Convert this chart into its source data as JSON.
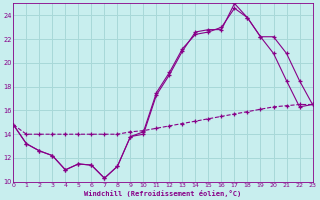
{
  "xlabel": "Windchill (Refroidissement éolien,°C)",
  "xlim": [
    0,
    23
  ],
  "ylim": [
    10,
    25
  ],
  "yticks": [
    10,
    12,
    14,
    16,
    18,
    20,
    22,
    24
  ],
  "xticks": [
    0,
    1,
    2,
    3,
    4,
    5,
    6,
    7,
    8,
    9,
    10,
    11,
    12,
    13,
    14,
    15,
    16,
    17,
    18,
    19,
    20,
    21,
    22,
    23
  ],
  "bg_color": "#c8eeee",
  "grid_color": "#a8d8d8",
  "line_color": "#880088",
  "line1_y": [
    14.8,
    13.2,
    12.6,
    12.2,
    11.0,
    11.5,
    11.4,
    10.3,
    11.3,
    13.8,
    14.0,
    17.3,
    19.0,
    21.0,
    22.6,
    22.8,
    22.8,
    25.0,
    23.8,
    22.2,
    20.8,
    18.5,
    16.3,
    16.5
  ],
  "line2_y": [
    14.8,
    13.2,
    12.6,
    12.2,
    11.0,
    11.5,
    11.4,
    10.3,
    11.3,
    13.8,
    14.2,
    17.5,
    19.2,
    21.2,
    22.4,
    22.6,
    23.0,
    24.6,
    23.8,
    22.2,
    22.2,
    20.8,
    18.5,
    16.5
  ],
  "line3_y": [
    14.8,
    14.0,
    14.0,
    14.0,
    14.0,
    14.0,
    14.0,
    14.0,
    14.0,
    14.2,
    14.3,
    14.5,
    14.7,
    14.9,
    15.1,
    15.3,
    15.5,
    15.7,
    15.9,
    16.1,
    16.3,
    16.4,
    16.5,
    16.5
  ]
}
